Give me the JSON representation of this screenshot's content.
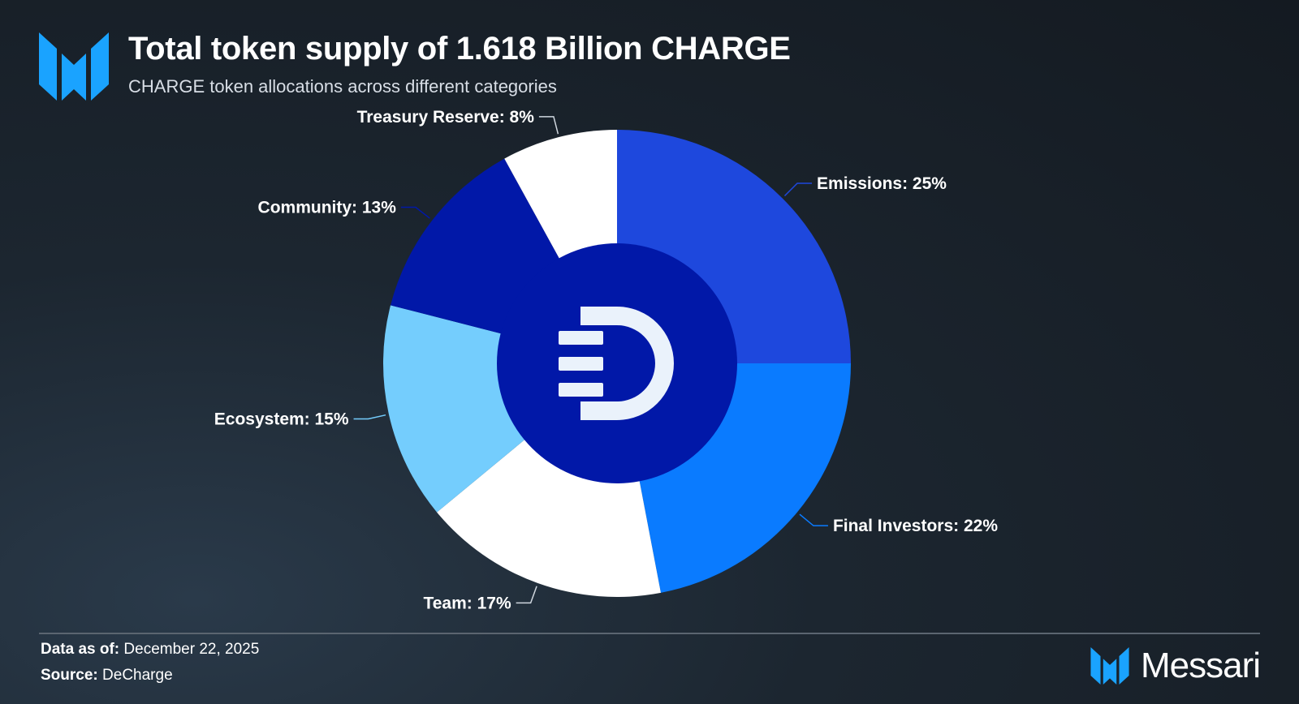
{
  "header": {
    "title": "Total token supply of 1.618 Billion CHARGE",
    "subtitle": "CHARGE token allocations across different categories"
  },
  "footer": {
    "data_as_of_label": "Data as of:",
    "data_as_of_value": "December 22, 2025",
    "source_label": "Source:",
    "source_value": "DeCharge",
    "brand": "Messari"
  },
  "colors": {
    "brand_blue": "#1aa3ff",
    "center": "#0118a8"
  },
  "chart_data": {
    "type": "pie",
    "title": "Total token supply of 1.618 Billion CHARGE",
    "subtitle": "CHARGE token allocations across different categories",
    "slices": [
      {
        "label": "Emissions: 25%",
        "value": 25,
        "color": "#1e48dd"
      },
      {
        "label": "Final Investors: 22%",
        "value": 22,
        "color": "#0a7bff"
      },
      {
        "label": "Team: 17%",
        "value": 17,
        "color": "#ffffff"
      },
      {
        "label": "Ecosystem: 15%",
        "value": 15,
        "color": "#74cdfd"
      },
      {
        "label": "Community: 13%",
        "value": 13,
        "color": "#0118a8"
      },
      {
        "label": "Treasury Reserve: 8%",
        "value": 8,
        "color": "#ffffff"
      }
    ],
    "legend": "none",
    "center_icon": "decharge-logo-icon"
  }
}
